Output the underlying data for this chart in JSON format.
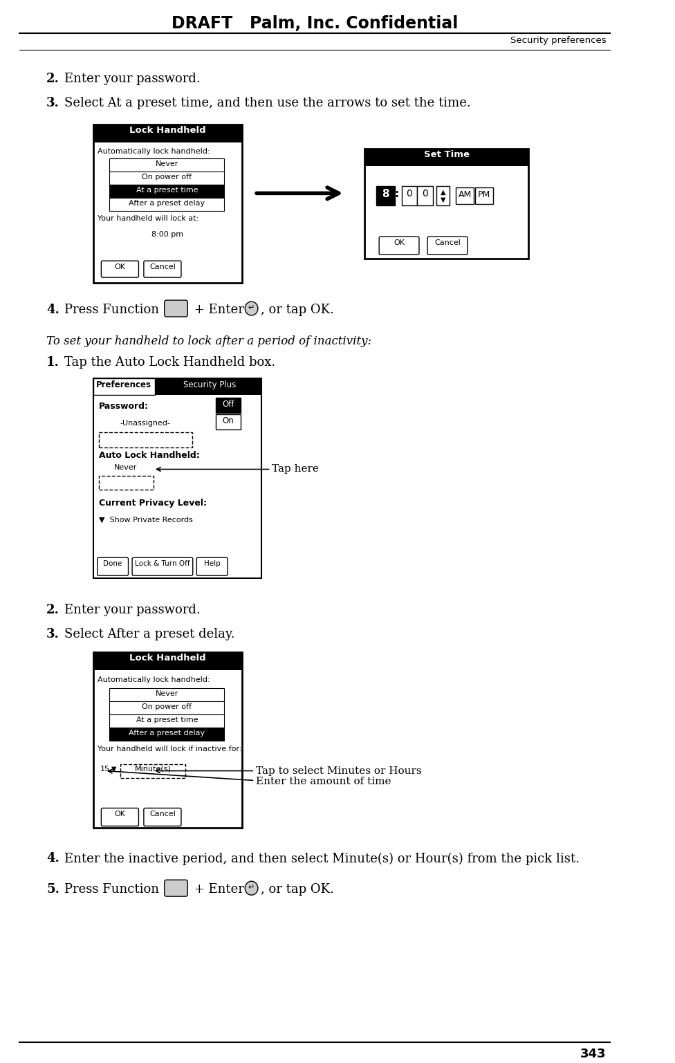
{
  "page_title": "DRAFT   Palm, Inc. Confidential",
  "page_subtitle": "Security preferences",
  "page_number": "343",
  "background_color": "#ffffff",
  "step2_text": "Enter your password.",
  "step3_text": "Select At a preset time, and then use the arrows to set the time.",
  "italic_heading": "To set your handheld to lock after a period of inactivity:",
  "sub_step1_text": "Tap the Auto Lock Handheld box.",
  "sub_step2_text": "Enter your password.",
  "sub_step3_text": "Select After a preset delay.",
  "sub_step4_text": "Enter the inactive period, and then select Minute(s) or Hour(s) from the pick list.",
  "tap_here_label": "Tap here",
  "tap_minutes_label": "Tap to select Minutes or Hours",
  "enter_time_label": "Enter the amount of time",
  "lh1_items": [
    "Never",
    "On power off",
    "At a preset time",
    "After a preset delay"
  ],
  "lh1_selected": 2,
  "lh2_items": [
    "Never",
    "On power off",
    "At a preset time",
    "After a preset delay"
  ],
  "lh2_selected": 3
}
